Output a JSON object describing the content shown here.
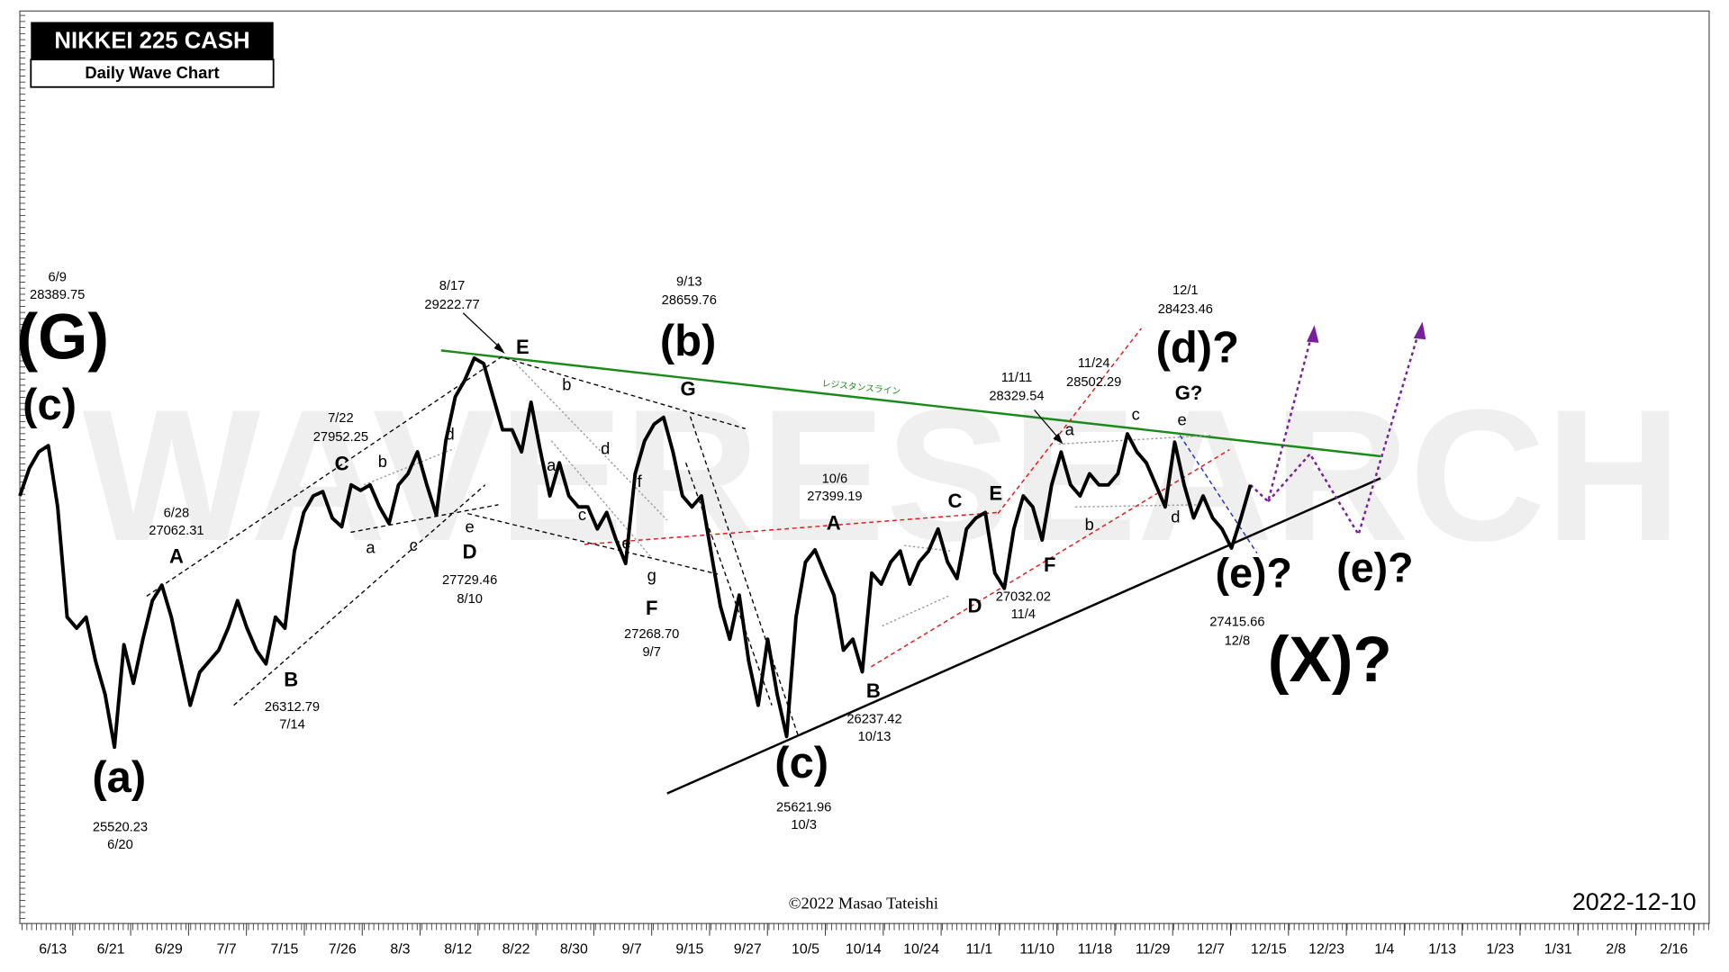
{
  "chart_data": {
    "type": "line",
    "title": "NIKKEI 225 CASH",
    "subtitle": "Daily Wave Chart",
    "watermark": "WAVERESEARCH",
    "copyright": "©2022 Masao Tateishi",
    "date": "2022-12-10",
    "resistance_label": "レジスタンスライン",
    "color": "#000000",
    "x_axis_labels": [
      "6/13",
      "6/21",
      "6/29",
      "7/7",
      "7/15",
      "7/26",
      "8/3",
      "8/12",
      "8/22",
      "8/30",
      "9/7",
      "9/15",
      "9/27",
      "10/5",
      "10/14",
      "10/24",
      "11/1",
      "11/10",
      "11/18",
      "11/29",
      "12/7",
      "12/15",
      "12/23",
      "1/4",
      "1/13",
      "1/23",
      "1/31",
      "2/8",
      "2/16"
    ],
    "values": [
      27912,
      28174,
      28331,
      28389.75,
      27807,
      26758,
      26653,
      26758,
      26338,
      26024,
      25520.23,
      26496,
      26128,
      26548,
      26915,
      27062.31,
      26758,
      26338,
      25919,
      26233,
      26338,
      26443,
      26653,
      26915,
      26653,
      26443,
      26312.79,
      26758,
      26653,
      27387,
      27754,
      27912,
      27952.25,
      27702,
      27618,
      28017,
      27964,
      28017,
      27807,
      27649,
      28017,
      28122,
      28331,
      28017,
      27729.46,
      28436,
      28856,
      29013,
      29222.77,
      29171,
      28856,
      28541,
      28541,
      28331,
      28803,
      28331,
      27912,
      28226,
      27912,
      27807,
      27807,
      27597,
      27754,
      27492,
      27268.7,
      28122,
      28436,
      28594,
      28659.76,
      28331,
      27912,
      27807,
      27912,
      27387,
      26863,
      26548,
      26968,
      26338,
      25919,
      26548,
      26024,
      25621.96,
      26758,
      27282,
      27399.19,
      27177,
      26968,
      26443,
      26548,
      26237.42,
      27177,
      27073,
      27282,
      27387,
      27073,
      27282,
      27387,
      27597,
      27282,
      27125,
      27597,
      27702,
      27754,
      27177,
      27032.02,
      27597,
      27912,
      27807,
      27492,
      28017,
      28329.54,
      28017,
      27912,
      28122,
      28017,
      28017,
      28122,
      28502.29,
      28331,
      28226,
      28017,
      27807,
      28423.46,
      28017,
      27702,
      27912,
      27702,
      27597,
      27415.66,
      27702,
      28017
    ],
    "annotations": [
      "(G)",
      "(c)",
      "(a)",
      "(b)",
      "(c)",
      "(d)?",
      "(e)?",
      "(e)?",
      "(X)?",
      "A",
      "B",
      "C",
      "D",
      "E",
      "F",
      "G",
      "A",
      "B",
      "C",
      "D",
      "E",
      "F",
      "G?",
      "a",
      "b",
      "c",
      "d",
      "e",
      "a",
      "b",
      "c",
      "d",
      "e",
      "f",
      "g",
      "a",
      "b",
      "c",
      "d",
      "e",
      "6/9",
      "28389.75",
      "8/17",
      "29222.77",
      "9/13",
      "28659.76",
      "12/1",
      "28423.46",
      "7/22",
      "27952.25",
      "6/28",
      "27062.31",
      "26312.79",
      "7/14",
      "27729.46",
      "8/10",
      "27268.70",
      "9/7",
      "25520.23",
      "6/20",
      "10/6",
      "27399.19",
      "26237.42",
      "10/13",
      "25621.96",
      "10/3",
      "27032.02",
      "11/4",
      "11/11",
      "28329.54",
      "11/24",
      "28502.29",
      "27415.66",
      "12/8"
    ]
  }
}
